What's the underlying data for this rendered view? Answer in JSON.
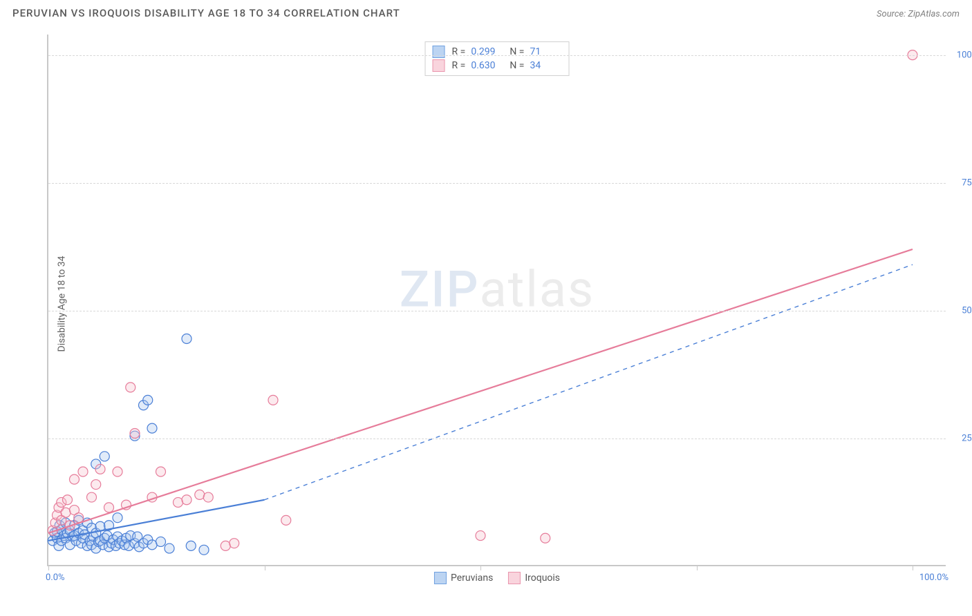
{
  "header": {
    "title": "PERUVIAN VS IROQUOIS DISABILITY AGE 18 TO 34 CORRELATION CHART",
    "source": "Source: ZipAtlas.com"
  },
  "chart": {
    "type": "scatter",
    "ylabel": "Disability Age 18 to 34",
    "background_color": "#ffffff",
    "grid_color": "#d8d8d8",
    "axis_color": "#c8c8c8",
    "tick_label_color": "#4a7fd6",
    "xlim": [
      0,
      104
    ],
    "ylim": [
      0,
      104
    ],
    "ytick_positions": [
      25,
      50,
      75,
      100
    ],
    "ytick_labels": [
      "25.0%",
      "50.0%",
      "75.0%",
      "100.0%"
    ],
    "xtick_positions": [
      0,
      25,
      50,
      75,
      100
    ],
    "xtick_label_left": "0.0%",
    "xtick_label_right": "100.0%",
    "marker_radius": 7,
    "marker_stroke_width": 1.2,
    "marker_fill_opacity": 0.35,
    "trend_line_width": 2.2,
    "watermark_text_a": "ZIP",
    "watermark_text_b": "atlas",
    "series": [
      {
        "name": "Peruvians",
        "color_fill": "#a8c6ef",
        "color_stroke": "#4a7fd6",
        "swatch_fill": "#bcd4f2",
        "swatch_border": "#6fa0e0",
        "R_value": "0.299",
        "N_value": "71",
        "trend": {
          "x1": 0,
          "y1": 5,
          "x2": 25,
          "y2": 13,
          "dashed_extend_x2": 100,
          "dashed_extend_y2": 59,
          "dash": true
        },
        "points": [
          [
            0.5,
            5
          ],
          [
            0.7,
            6.5
          ],
          [
            1,
            5.5
          ],
          [
            1,
            6.8
          ],
          [
            1.2,
            4
          ],
          [
            1.3,
            8
          ],
          [
            1.5,
            5
          ],
          [
            1.5,
            7.2
          ],
          [
            1.8,
            6
          ],
          [
            2,
            5.5
          ],
          [
            2,
            8.5
          ],
          [
            2.2,
            6.5
          ],
          [
            2.5,
            4.2
          ],
          [
            2.5,
            7
          ],
          [
            2.8,
            5.8
          ],
          [
            3,
            6
          ],
          [
            3,
            8
          ],
          [
            3.2,
            5
          ],
          [
            3.5,
            6.5
          ],
          [
            3.5,
            9
          ],
          [
            3.8,
            4.5
          ],
          [
            4,
            5.5
          ],
          [
            4,
            7
          ],
          [
            4.2,
            6.2
          ],
          [
            4.5,
            4
          ],
          [
            4.5,
            8.5
          ],
          [
            4.8,
            5
          ],
          [
            5,
            4.2
          ],
          [
            5,
            7.5
          ],
          [
            5.2,
            5.8
          ],
          [
            5.5,
            3.5
          ],
          [
            5.5,
            6.5
          ],
          [
            5.8,
            4.8
          ],
          [
            6,
            5
          ],
          [
            6,
            7.8
          ],
          [
            6.3,
            4.2
          ],
          [
            6.5,
            5.5
          ],
          [
            6.8,
            6
          ],
          [
            7,
            3.8
          ],
          [
            7,
            8
          ],
          [
            7.3,
            4.5
          ],
          [
            7.5,
            5.2
          ],
          [
            7.8,
            4
          ],
          [
            8,
            5.8
          ],
          [
            8,
            9.5
          ],
          [
            8.2,
            4.5
          ],
          [
            8.5,
            5
          ],
          [
            8.8,
            4.2
          ],
          [
            9,
            5.5
          ],
          [
            9.3,
            4
          ],
          [
            9.5,
            6
          ],
          [
            10,
            4.5
          ],
          [
            10.3,
            5.8
          ],
          [
            10.5,
            3.8
          ],
          [
            11,
            4.5
          ],
          [
            11.5,
            5.2
          ],
          [
            12,
            4.2
          ],
          [
            13,
            4.8
          ],
          [
            14,
            3.5
          ],
          [
            5.5,
            20
          ],
          [
            6.5,
            21.5
          ],
          [
            10,
            25.5
          ],
          [
            11,
            31.5
          ],
          [
            11.5,
            32.5
          ],
          [
            12,
            27
          ],
          [
            16,
            44.5
          ],
          [
            18,
            3.2
          ],
          [
            16.5,
            4
          ]
        ]
      },
      {
        "name": "Iroquois",
        "color_fill": "#f5c2ce",
        "color_stroke": "#e67c9a",
        "swatch_fill": "#f9d4dd",
        "swatch_border": "#ea94ac",
        "R_value": "0.630",
        "N_value": "34",
        "trend": {
          "x1": 0,
          "y1": 6.5,
          "x2": 100,
          "y2": 62,
          "dash": false
        },
        "points": [
          [
            0.5,
            7
          ],
          [
            0.8,
            8.5
          ],
          [
            1,
            10
          ],
          [
            1.2,
            11.5
          ],
          [
            1.5,
            9
          ],
          [
            1.5,
            12.5
          ],
          [
            2,
            10.5
          ],
          [
            2.2,
            13
          ],
          [
            2.5,
            8
          ],
          [
            3,
            11
          ],
          [
            3,
            17
          ],
          [
            3.5,
            9.5
          ],
          [
            4,
            18.5
          ],
          [
            5,
            13.5
          ],
          [
            5.5,
            16
          ],
          [
            6,
            19
          ],
          [
            7,
            11.5
          ],
          [
            8,
            18.5
          ],
          [
            9,
            12
          ],
          [
            9.5,
            35
          ],
          [
            10,
            26
          ],
          [
            12,
            13.5
          ],
          [
            13,
            18.5
          ],
          [
            15,
            12.5
          ],
          [
            16,
            13
          ],
          [
            17.5,
            14
          ],
          [
            18.5,
            13.5
          ],
          [
            20.5,
            4
          ],
          [
            21.5,
            4.5
          ],
          [
            26,
            32.5
          ],
          [
            27.5,
            9
          ],
          [
            50,
            6
          ],
          [
            57.5,
            5.5
          ],
          [
            100,
            100
          ]
        ]
      }
    ]
  }
}
